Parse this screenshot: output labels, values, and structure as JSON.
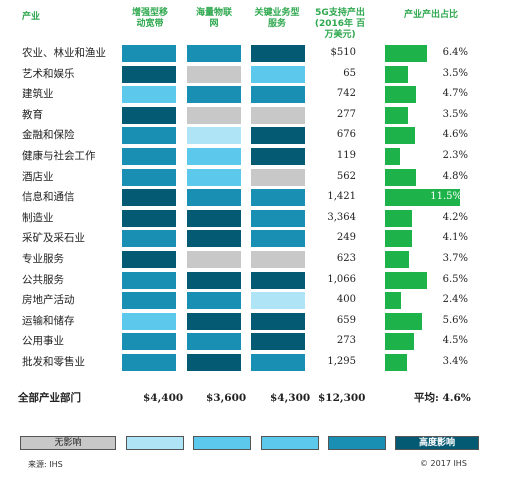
{
  "headers": {
    "industry": "产业",
    "col1": [
      "增强型移",
      "动宽带"
    ],
    "col2": [
      "海量物联",
      "网"
    ],
    "col3": [
      "关键业务型",
      "服务"
    ],
    "col4": [
      "5G支持产出",
      "(2016年 百",
      "万美元)"
    ],
    "col5": "产业产出占比"
  },
  "colors": {
    "none": "#c8c8c8",
    "light": "#aee4f5",
    "mid_light": "#5bc8ec",
    "mid": "#1a8fb4",
    "high": "#055a73",
    "bar": "#1db24a"
  },
  "chart_data": {
    "type": "table",
    "rows": [
      {
        "label": "农业、林业和渔业",
        "impacts": [
          "mid",
          "mid",
          "high"
        ],
        "output": "$510",
        "share": 6.4,
        "share_label": "6.4%"
      },
      {
        "label": "艺术和娱乐",
        "impacts": [
          "high",
          "none",
          "mid_light"
        ],
        "output": "65",
        "share": 3.5,
        "share_label": "3.5%"
      },
      {
        "label": "建筑业",
        "impacts": [
          "mid_light",
          "mid",
          "mid"
        ],
        "output": "742",
        "share": 4.7,
        "share_label": "4.7%"
      },
      {
        "label": "教育",
        "impacts": [
          "high",
          "none",
          "none"
        ],
        "output": "277",
        "share": 3.5,
        "share_label": "3.5%"
      },
      {
        "label": "金融和保险",
        "impacts": [
          "mid",
          "light",
          "high"
        ],
        "output": "676",
        "share": 4.6,
        "share_label": "4.6%"
      },
      {
        "label": "健康与社会工作",
        "impacts": [
          "mid",
          "mid_light",
          "high"
        ],
        "output": "119",
        "share": 2.3,
        "share_label": "2.3%"
      },
      {
        "label": "酒店业",
        "impacts": [
          "mid",
          "mid_light",
          "none"
        ],
        "output": "562",
        "share": 4.8,
        "share_label": "4.8%"
      },
      {
        "label": "信息和通信",
        "impacts": [
          "high",
          "mid",
          "mid"
        ],
        "output": "1,421",
        "share": 11.5,
        "share_label": "11.5%"
      },
      {
        "label": "制造业",
        "impacts": [
          "high",
          "high",
          "mid"
        ],
        "output": "3,364",
        "share": 4.2,
        "share_label": "4.2%"
      },
      {
        "label": "采矿及采石业",
        "impacts": [
          "mid",
          "high",
          "mid"
        ],
        "output": "249",
        "share": 4.1,
        "share_label": "4.1%"
      },
      {
        "label": "专业服务",
        "impacts": [
          "high",
          "none",
          "none"
        ],
        "output": "623",
        "share": 3.7,
        "share_label": "3.7%"
      },
      {
        "label": "公共服务",
        "impacts": [
          "mid",
          "high",
          "high"
        ],
        "output": "1,066",
        "share": 6.5,
        "share_label": "6.5%"
      },
      {
        "label": "房地产活动",
        "impacts": [
          "mid",
          "mid",
          "light"
        ],
        "output": "400",
        "share": 2.4,
        "share_label": "2.4%"
      },
      {
        "label": "运输和储存",
        "impacts": [
          "mid_light",
          "high",
          "high"
        ],
        "output": "659",
        "share": 5.6,
        "share_label": "5.6%"
      },
      {
        "label": "公用事业",
        "impacts": [
          "mid",
          "mid",
          "high"
        ],
        "output": "273",
        "share": 4.5,
        "share_label": "4.5%"
      },
      {
        "label": "批发和零售业",
        "impacts": [
          "mid",
          "high",
          "mid"
        ],
        "output": "1,295",
        "share": 3.4,
        "share_label": "3.4%"
      }
    ],
    "share_max": 11.5
  },
  "totals": {
    "label": "全部产业部门",
    "col1": "$4,400",
    "col2": "$3,600",
    "col3": "$4,300",
    "col4": "$12,300",
    "avg": "平均: 4.6%"
  },
  "legend": {
    "low_label": "无影响",
    "high_label": "高度影响"
  },
  "footer": {
    "source": "来源: IHS",
    "copyright": "© 2017 IHS"
  }
}
